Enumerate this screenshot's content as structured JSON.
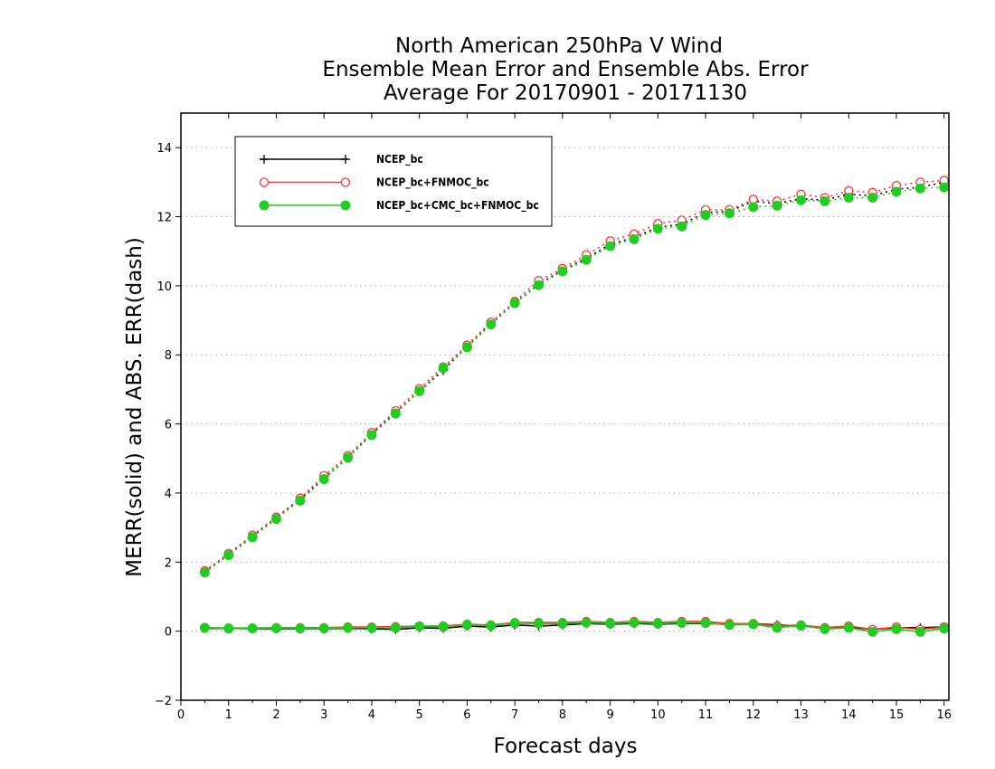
{
  "chart_data": {
    "type": "line",
    "title": [
      "North American 250hPa V Wind",
      "Ensemble Mean Error and Ensemble Abs. Error",
      "Average For 20170901 - 20171130"
    ],
    "xlabel": "Forecast days",
    "ylabel": "MERR(solid) and ABS. ERR(dash)",
    "xlim": [
      0,
      16.1
    ],
    "ylim": [
      -2,
      15
    ],
    "xticks": [
      0,
      1,
      2,
      3,
      4,
      5,
      6,
      7,
      8,
      9,
      10,
      11,
      12,
      13,
      14,
      15,
      16
    ],
    "yticks": [
      -2,
      0,
      2,
      4,
      6,
      8,
      10,
      12,
      14
    ],
    "grid": "horizontal dotted",
    "legend_position": "top-left",
    "x": [
      0.5,
      1,
      1.5,
      2,
      2.5,
      3,
      3.5,
      4,
      4.5,
      5,
      5.5,
      6,
      6.5,
      7,
      7.5,
      8,
      8.5,
      9,
      9.5,
      10,
      10.5,
      11,
      11.5,
      12,
      12.5,
      13,
      13.5,
      14,
      14.5,
      15,
      15.5,
      16
    ],
    "series": [
      {
        "name": "NCEP_bc",
        "color": "#000000",
        "marker": "plus",
        "merr": [
          0.08,
          0.08,
          0.07,
          0.07,
          0.07,
          0.07,
          0.08,
          0.07,
          0.05,
          0.1,
          0.08,
          0.15,
          0.12,
          0.18,
          0.15,
          0.18,
          0.22,
          0.2,
          0.22,
          0.2,
          0.22,
          0.22,
          0.2,
          0.22,
          0.18,
          0.15,
          0.1,
          0.12,
          0.05,
          0.1,
          0.1,
          0.12
        ],
        "abserr": [
          1.72,
          2.22,
          2.75,
          3.28,
          3.82,
          4.42,
          5.02,
          5.72,
          6.32,
          6.95,
          7.55,
          8.25,
          8.9,
          9.5,
          10.05,
          10.45,
          10.8,
          11.2,
          11.4,
          11.7,
          11.78,
          12.12,
          12.15,
          12.45,
          12.38,
          12.52,
          12.48,
          12.65,
          12.6,
          12.8,
          12.85,
          13.0
        ]
      },
      {
        "name": "NCEP_bc+FNMOC_bc",
        "color": "#ff3333",
        "marker": "open-circle",
        "merr": [
          0.1,
          0.09,
          0.09,
          0.1,
          0.1,
          0.1,
          0.12,
          0.12,
          0.13,
          0.15,
          0.15,
          0.2,
          0.18,
          0.25,
          0.25,
          0.25,
          0.28,
          0.25,
          0.28,
          0.25,
          0.28,
          0.28,
          0.22,
          0.22,
          0.15,
          0.18,
          0.1,
          0.15,
          0.05,
          0.12,
          0.05,
          0.12
        ],
        "abserr": [
          1.75,
          2.25,
          2.78,
          3.3,
          3.85,
          4.5,
          5.08,
          5.75,
          6.38,
          7.02,
          7.65,
          8.28,
          8.95,
          9.55,
          10.15,
          10.5,
          10.9,
          11.3,
          11.5,
          11.8,
          11.9,
          12.2,
          12.2,
          12.5,
          12.45,
          12.65,
          12.55,
          12.75,
          12.7,
          12.9,
          13.0,
          13.05
        ]
      },
      {
        "name": "NCEP_bc+CMC_bc+FNMOC_bc",
        "color": "#22cc22",
        "marker": "filled-circle",
        "merr": [
          0.1,
          0.08,
          0.08,
          0.09,
          0.08,
          0.08,
          0.1,
          0.1,
          0.1,
          0.14,
          0.13,
          0.18,
          0.16,
          0.23,
          0.22,
          0.22,
          0.25,
          0.22,
          0.25,
          0.22,
          0.24,
          0.24,
          0.18,
          0.2,
          0.1,
          0.16,
          0.06,
          0.1,
          -0.02,
          0.06,
          -0.02,
          0.08
        ],
        "abserr": [
          1.7,
          2.2,
          2.72,
          3.25,
          3.78,
          4.4,
          5.02,
          5.68,
          6.3,
          6.95,
          7.62,
          8.22,
          8.88,
          9.5,
          10.02,
          10.42,
          10.75,
          11.15,
          11.35,
          11.65,
          11.72,
          12.05,
          12.1,
          12.28,
          12.32,
          12.48,
          12.45,
          12.55,
          12.55,
          12.72,
          12.82,
          12.85
        ]
      }
    ]
  }
}
